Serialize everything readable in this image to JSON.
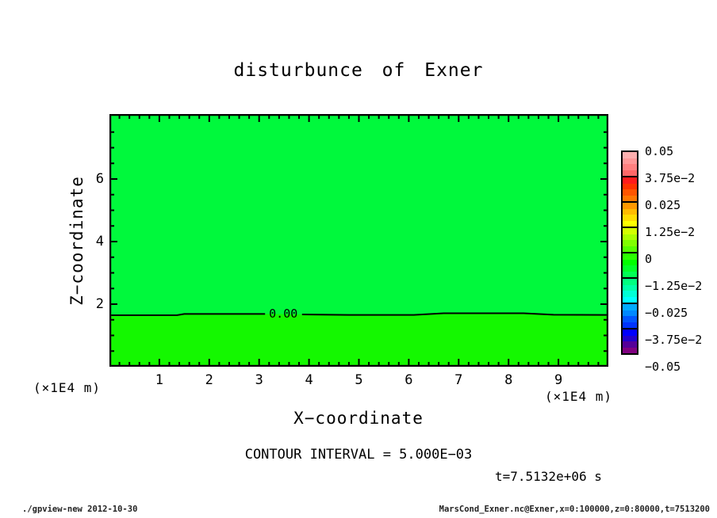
{
  "title": "disturbunce of Exner",
  "chart_data": {
    "type": "contour",
    "title": "disturbunce of Exner",
    "xlabel": "X−coordinate",
    "ylabel": "Z−coordinate",
    "x_unit_label": "(×1E4 m)",
    "x_range": [
      0,
      10
    ],
    "z_range": [
      0,
      8.08
    ],
    "x_ticks": [
      "1",
      "2",
      "3",
      "4",
      "5",
      "6",
      "7",
      "8",
      "9"
    ],
    "x_tick_values": [
      1,
      2,
      3,
      4,
      5,
      6,
      7,
      8,
      9
    ],
    "x_minor_step": 0.2,
    "z_ticks": [
      "2",
      "4",
      "6"
    ],
    "z_tick_values": [
      2,
      4,
      6
    ],
    "z_minor_step": 0.5,
    "grid": false,
    "contour_interval_label": "CONTOUR INTERVAL = 5.000E−03",
    "time_label": "t=7.5132e+06 s",
    "contour": {
      "level_label": "0.00",
      "level_value": 0.0,
      "mean_z": 1.67,
      "label_pos": [
        3.23,
        1.67
      ],
      "segments": [
        [
          [
            0,
            1.645
          ],
          [
            1.35,
            1.645
          ],
          [
            1.5,
            1.685
          ],
          [
            3.12,
            1.685
          ]
        ],
        [
          [
            3.86,
            1.67
          ],
          [
            4.8,
            1.655
          ],
          [
            6.1,
            1.655
          ],
          [
            6.7,
            1.71
          ],
          [
            8.3,
            1.71
          ],
          [
            8.9,
            1.66
          ],
          [
            10,
            1.655
          ]
        ]
      ]
    },
    "fill_above_color": "#00f93c",
    "fill_below_color": "#14f800",
    "colorbar": {
      "position": "right",
      "range": [
        -0.05,
        0.05
      ],
      "tick_labels": [
        "0.05",
        "3.75e−2",
        "0.025",
        "1.25e−2",
        "0",
        "−1.25e−2",
        "−0.025",
        "−3.75e−2",
        "−0.05"
      ],
      "tick_values": [
        0.05,
        0.0375,
        0.025,
        0.0125,
        0,
        -0.0125,
        -0.025,
        -0.0375,
        -0.05
      ],
      "cell_colors": [
        "#ffb0b0",
        "#ff9898",
        "#ff8080",
        "#ff6868",
        "#ff1c1c",
        "#ff3300",
        "#ff5500",
        "#ff7700",
        "#ff9900",
        "#ffbb00",
        "#ffdd00",
        "#ffff00",
        "#d4ff00",
        "#aaff00",
        "#80ff00",
        "#55ff00",
        "#2bff00",
        "#00ff00",
        "#00ff2b",
        "#00ff55",
        "#00ff80",
        "#00ffaa",
        "#00ffd5",
        "#00ffff",
        "#00aaff",
        "#0088ff",
        "#0055ff",
        "#0033ff",
        "#0000ff",
        "#2200cc",
        "#550099",
        "#800080"
      ]
    }
  },
  "footer": {
    "left": "./gpview-new  2012-10-30",
    "right": "MarsCond_Exner.nc@Exner,x=0:100000,z=0:80000,t=7513200"
  }
}
